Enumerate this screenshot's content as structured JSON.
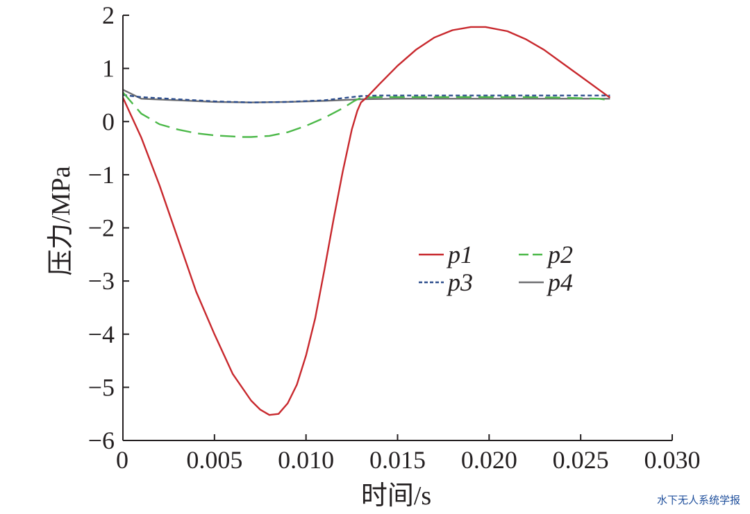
{
  "chart_data": {
    "type": "line",
    "title": "",
    "xlabel": "时间/s",
    "ylabel": "压力/MPa",
    "xlim": [
      0,
      0.03
    ],
    "ylim": [
      -6,
      2
    ],
    "xticks": [
      0,
      0.005,
      0.01,
      0.015,
      0.02,
      0.025,
      0.03
    ],
    "xtick_labels": [
      "0",
      "0.005",
      "0.010",
      "0.015",
      "0.020",
      "0.025",
      "0.030"
    ],
    "yticks": [
      2,
      1,
      0,
      -1,
      -2,
      -3,
      -4,
      -5,
      -6
    ],
    "ytick_labels": [
      "2",
      "1",
      "0",
      "−1",
      "−2",
      "−3",
      "−4",
      "−5",
      "−6"
    ],
    "grid": false,
    "legend_position": "center-right",
    "series": [
      {
        "name": "p1",
        "color": "#c8282d",
        "dash": "solid",
        "x": [
          0,
          0.001,
          0.002,
          0.003,
          0.004,
          0.005,
          0.006,
          0.007,
          0.0075,
          0.008,
          0.0085,
          0.009,
          0.0095,
          0.01,
          0.0105,
          0.011,
          0.0115,
          0.012,
          0.0125,
          0.0128,
          0.013,
          0.0133,
          0.014,
          0.015,
          0.016,
          0.017,
          0.018,
          0.019,
          0.0198,
          0.021,
          0.022,
          0.023,
          0.024,
          0.025,
          0.026,
          0.0266
        ],
        "y": [
          0.45,
          -0.3,
          -1.2,
          -2.2,
          -3.2,
          -4.0,
          -4.75,
          -5.25,
          -5.42,
          -5.52,
          -5.5,
          -5.3,
          -4.95,
          -4.4,
          -3.7,
          -2.8,
          -1.85,
          -0.95,
          -0.15,
          0.2,
          0.36,
          0.45,
          0.7,
          1.05,
          1.35,
          1.58,
          1.72,
          1.78,
          1.78,
          1.7,
          1.55,
          1.35,
          1.1,
          0.85,
          0.6,
          0.45
        ]
      },
      {
        "name": "p2",
        "color": "#4bb848",
        "dash": "long-dash",
        "x": [
          0,
          0.001,
          0.002,
          0.003,
          0.004,
          0.005,
          0.006,
          0.0065,
          0.007,
          0.008,
          0.009,
          0.01,
          0.011,
          0.012,
          0.0126,
          0.013,
          0.014,
          0.016,
          0.018,
          0.02,
          0.022,
          0.024,
          0.026,
          0.0266
        ],
        "y": [
          0.55,
          0.15,
          -0.05,
          -0.15,
          -0.22,
          -0.26,
          -0.28,
          -0.29,
          -0.29,
          -0.27,
          -0.2,
          -0.08,
          0.07,
          0.25,
          0.38,
          0.45,
          0.46,
          0.46,
          0.46,
          0.46,
          0.46,
          0.45,
          0.43,
          0.4
        ]
      },
      {
        "name": "p3",
        "color": "#2b4c8c",
        "dash": "short-dash",
        "x": [
          0,
          0.001,
          0.003,
          0.005,
          0.007,
          0.009,
          0.011,
          0.012,
          0.013,
          0.014,
          0.016,
          0.018,
          0.02,
          0.022,
          0.024,
          0.026,
          0.0266
        ],
        "y": [
          0.5,
          0.46,
          0.42,
          0.38,
          0.36,
          0.37,
          0.4,
          0.44,
          0.48,
          0.49,
          0.49,
          0.49,
          0.49,
          0.49,
          0.49,
          0.49,
          0.49
        ]
      },
      {
        "name": "p4",
        "color": "#6d6e71",
        "dash": "solid",
        "x": [
          0,
          0.001,
          0.003,
          0.005,
          0.007,
          0.009,
          0.011,
          0.013,
          0.015,
          0.017,
          0.019,
          0.021,
          0.023,
          0.025,
          0.0266
        ],
        "y": [
          0.6,
          0.43,
          0.4,
          0.37,
          0.36,
          0.37,
          0.39,
          0.42,
          0.43,
          0.43,
          0.43,
          0.43,
          0.43,
          0.43,
          0.43
        ]
      }
    ]
  },
  "watermark": "水下无人系统学报"
}
